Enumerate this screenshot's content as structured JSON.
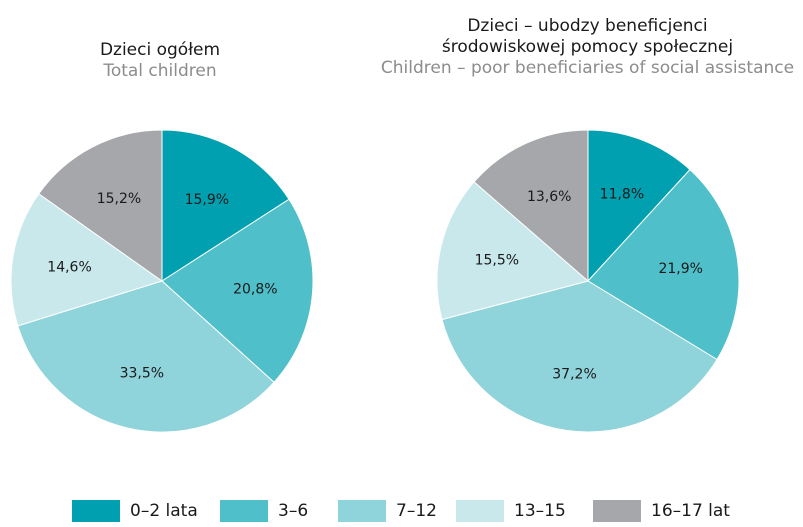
{
  "chart_data": [
    {
      "type": "pie",
      "title": "Dzieci ogółem",
      "subtitle": "Total children",
      "categories": [
        "0–2 lata",
        "3–6",
        "7–12",
        "13–15",
        "16–17 lat"
      ],
      "values": [
        15.9,
        20.8,
        33.5,
        14.6,
        15.2
      ],
      "value_labels": [
        "15,9%",
        "20,8%",
        "33,5%",
        "14,6%",
        "15,2%"
      ]
    },
    {
      "type": "pie",
      "title": "Dzieci – ubodzy beneficjenci\nśrodowiskowej pomocy społecznej",
      "subtitle": "Children – poor beneficiaries of social assistance",
      "categories": [
        "0–2 lata",
        "3–6",
        "7–12",
        "13–15",
        "16–17 lat"
      ],
      "values": [
        11.8,
        21.9,
        37.2,
        15.5,
        13.6
      ],
      "value_labels": [
        "11,8%",
        "21,9%",
        "37,2%",
        "15,5%",
        "13,6%"
      ]
    }
  ],
  "legend": [
    {
      "label": "0–2 lata",
      "color": "#00a0b0"
    },
    {
      "label": "3–6",
      "color": "#4fbfc9"
    },
    {
      "label": "7–12",
      "color": "#8fd3db"
    },
    {
      "label": "13–15",
      "color": "#c8e8ec"
    },
    {
      "label": "16–17 lat",
      "color": "#a6a7ab"
    }
  ],
  "legend_placement": "bottom"
}
